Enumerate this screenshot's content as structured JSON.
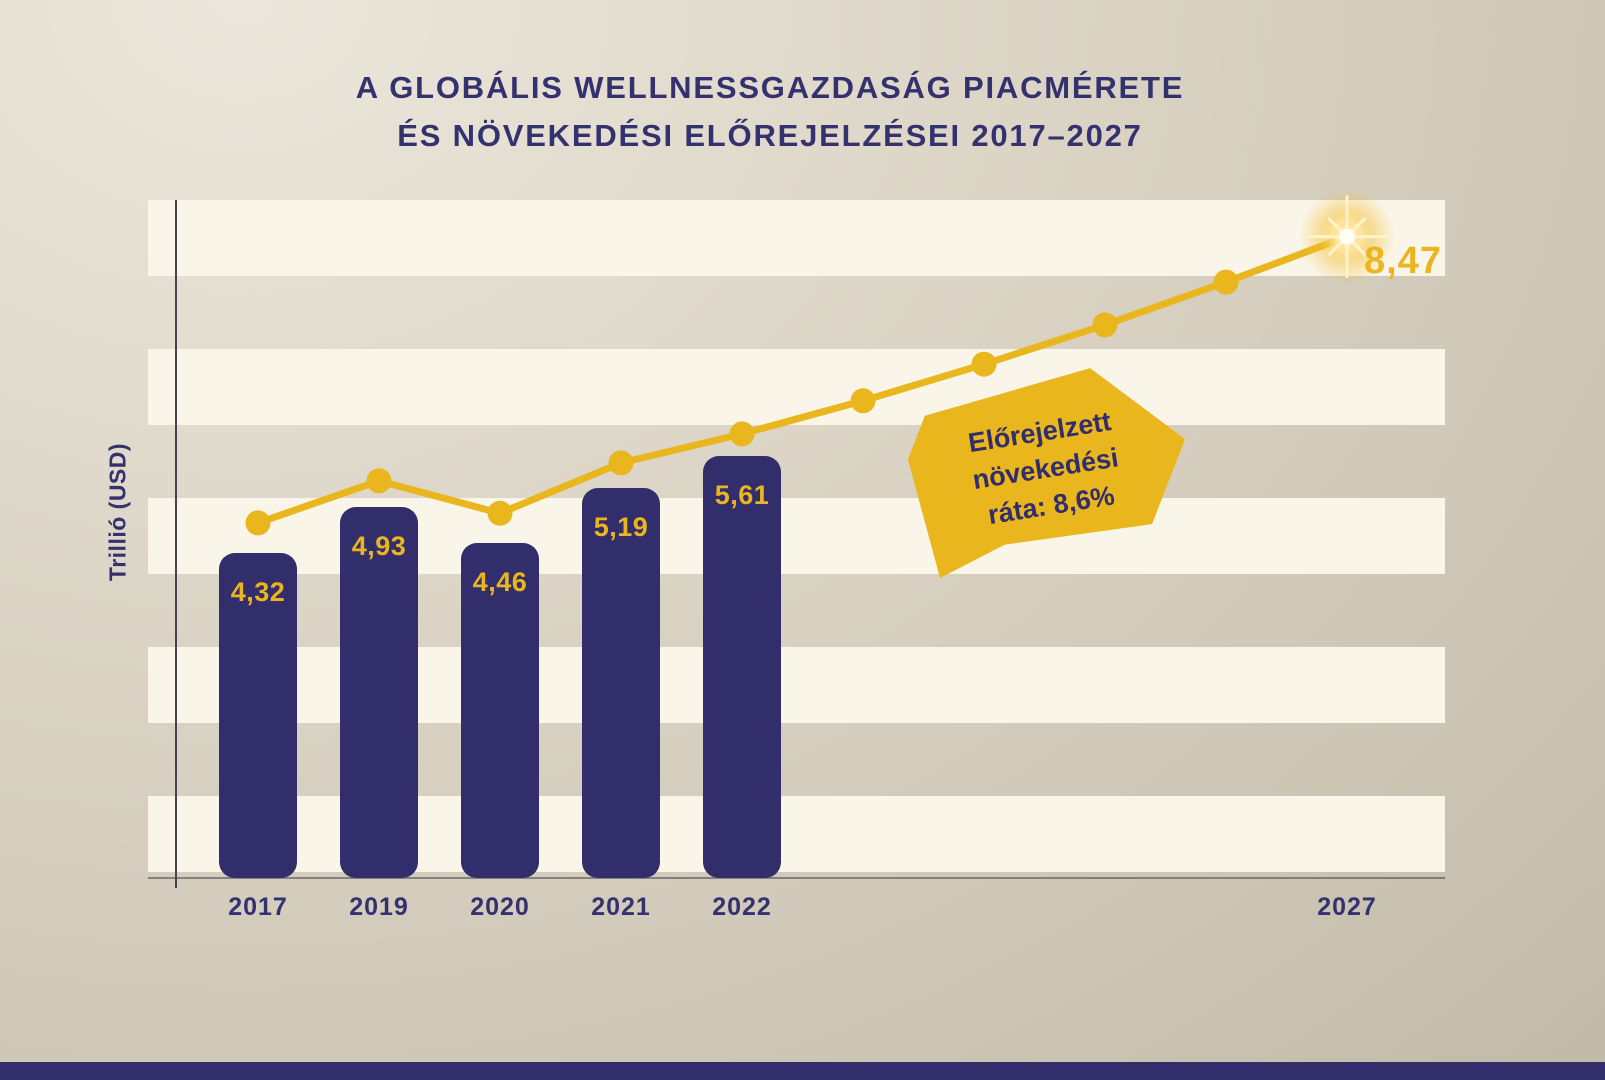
{
  "title": {
    "line1": "A GLOBÁLIS WELLNESSGAZDASÁG PIACMÉRETE",
    "line2": "ÉS NÖVEKEDÉSI ELŐREJELZÉSEI 2017–2027"
  },
  "y_axis_label": "Trillió (USD)",
  "endpoint_label": "8,47",
  "annotation": {
    "lines": [
      "Előrejelzett",
      "növekedési",
      "ráta: 8,6%"
    ]
  },
  "colors": {
    "navy": "#312e6b",
    "gold": "#eab61e",
    "cream": "#faf5e9",
    "background_light": "#ece7dc",
    "background_dark": "#c2baa9"
  },
  "chart_data": {
    "type": "bar+line",
    "title": "A globális wellnessgazdaság piacmérete és növekedési előrejelzései 2017–2027",
    "ylabel": "Trillió (USD)",
    "ylim": [
      0,
      9
    ],
    "grid": "horizontal-stripes",
    "bar_series": {
      "categories": [
        "2017",
        "2019",
        "2020",
        "2021",
        "2022"
      ],
      "values": [
        4.32,
        4.93,
        4.46,
        5.19,
        5.61
      ],
      "labels": [
        "4,32",
        "4,93",
        "4,46",
        "5,19",
        "5,61"
      ]
    },
    "line_series": {
      "x": [
        "2017",
        "2019",
        "2020",
        "2021",
        "2022",
        "2023",
        "2024",
        "2025",
        "2026",
        "2027"
      ],
      "values": [
        4.32,
        4.93,
        4.46,
        5.19,
        5.61,
        6.09,
        6.62,
        7.19,
        7.81,
        8.47
      ]
    },
    "forecast_growth_rate": "8,6%",
    "final_value_label": "8,47",
    "x_ticks": [
      {
        "label": "2017",
        "index": 0
      },
      {
        "label": "2019",
        "index": 1
      },
      {
        "label": "2020",
        "index": 2
      },
      {
        "label": "2021",
        "index": 3
      },
      {
        "label": "2022",
        "index": 4
      },
      {
        "label": "2027",
        "index": 9
      }
    ]
  }
}
